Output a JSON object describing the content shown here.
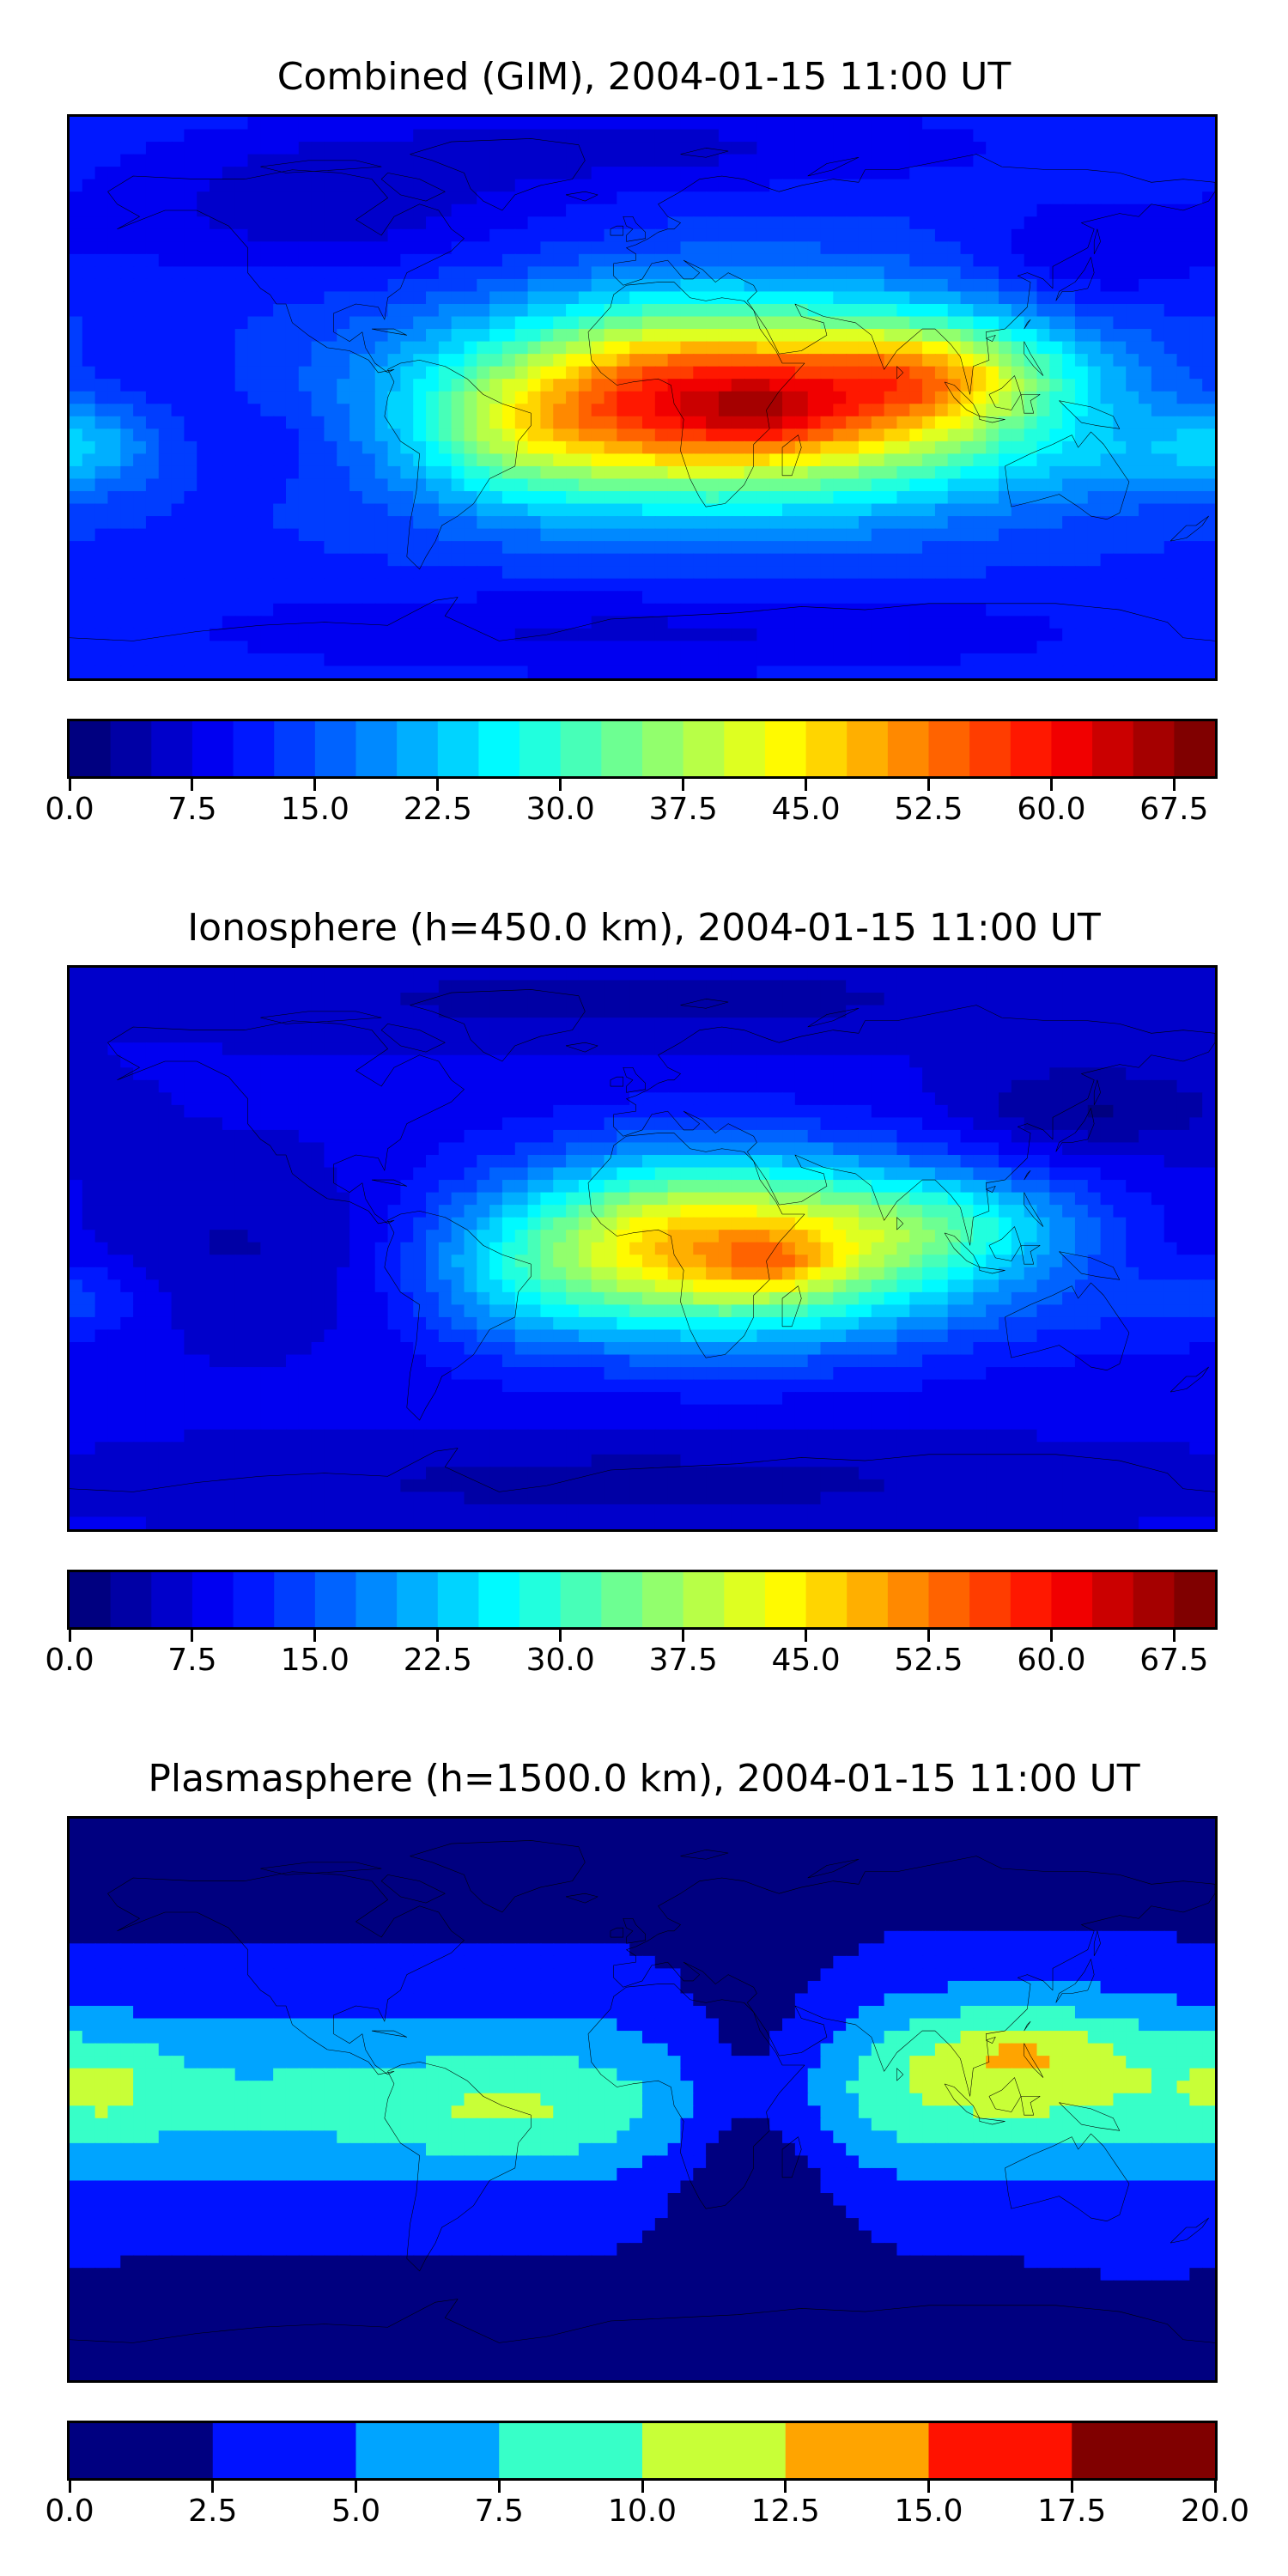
{
  "figure": {
    "panels": [
      {
        "id": "gim",
        "title": "Combined (GIM), 2004-01-15 11:00 UT"
      },
      {
        "id": "iono",
        "title": "Ionosphere  (h=450.0 km), 2004-01-15 11:00 UT"
      },
      {
        "id": "plasma",
        "title": "Plasmasphere (h=1500.0 km), 2004-01-15 11:00 UT"
      }
    ]
  },
  "chart_data": [
    {
      "type": "heatmap",
      "title": "Combined (GIM), 2004-01-15 11:00 UT",
      "projection": "plate-carree",
      "x_range": [
        -180,
        180
      ],
      "y_range": [
        -90,
        90
      ],
      "colormap": "jet",
      "colorbar": {
        "range": [
          0,
          70
        ],
        "levels": [
          0,
          2.5,
          5,
          7.5,
          10,
          12.5,
          15,
          17.5,
          20,
          22.5,
          25,
          27.5,
          30,
          32.5,
          35,
          37.5,
          40,
          42.5,
          45,
          47.5,
          50,
          52.5,
          55,
          57.5,
          60,
          62.5,
          65,
          67.5,
          70
        ],
        "ticks": [
          "0.0",
          "7.5",
          "15.0",
          "22.5",
          "30.0",
          "37.5",
          "45.0",
          "52.5",
          "60.0",
          "67.5"
        ],
        "tick_values": [
          0,
          7.5,
          15,
          22.5,
          30,
          37.5,
          45,
          52.5,
          60,
          67.5
        ]
      },
      "background_value": 12,
      "features": [
        {
          "lon": 30,
          "lat": -2,
          "value": 43,
          "sx": 62,
          "sy": 22
        },
        {
          "lon": 5,
          "lat": 2,
          "value": 8,
          "sx": 26,
          "sy": 18
        },
        {
          "lon": 85,
          "lat": 5,
          "value": 10,
          "sx": 26,
          "sy": 14
        },
        {
          "lon": 38,
          "lat": -5,
          "value": 7,
          "sx": 14,
          "sy": 7
        },
        {
          "lon": 100,
          "lat": 8,
          "value": 8,
          "sx": 30,
          "sy": 10
        },
        {
          "lon": -40,
          "lat": -12,
          "value": 9,
          "sx": 22,
          "sy": 16
        },
        {
          "lon": -175,
          "lat": -15,
          "value": 8,
          "sx": 18,
          "sy": 10
        },
        {
          "lon": 150,
          "lat": -20,
          "value": 4,
          "sx": 30,
          "sy": 10
        },
        {
          "lon": -120,
          "lat": -15,
          "value": -3,
          "sx": 22,
          "sy": 10
        },
        {
          "lon": -160,
          "lat": 5,
          "value": -2,
          "sx": 25,
          "sy": 10
        },
        {
          "lon": -100,
          "lat": 60,
          "value": -6,
          "sx": 50,
          "sy": 15
        },
        {
          "lon": 0,
          "lat": 80,
          "value": -5,
          "sx": 80,
          "sy": 10
        },
        {
          "lon": 140,
          "lat": 45,
          "value": -5,
          "sx": 25,
          "sy": 12
        },
        {
          "lon": 0,
          "lat": -75,
          "value": -5,
          "sx": 100,
          "sy": 10
        }
      ]
    },
    {
      "type": "heatmap",
      "title": "Ionosphere  (h=450.0 km), 2004-01-15 11:00 UT",
      "projection": "plate-carree",
      "x_range": [
        -180,
        180
      ],
      "y_range": [
        -90,
        90
      ],
      "colormap": "jet",
      "colorbar": {
        "range": [
          0,
          70
        ],
        "levels": [
          0,
          2.5,
          5,
          7.5,
          10,
          12.5,
          15,
          17.5,
          20,
          22.5,
          25,
          27.5,
          30,
          32.5,
          35,
          37.5,
          40,
          42.5,
          45,
          47.5,
          50,
          52.5,
          55,
          57.5,
          60,
          62.5,
          65,
          67.5,
          70
        ],
        "ticks": [
          "0.0",
          "7.5",
          "15.0",
          "22.5",
          "30.0",
          "37.5",
          "45.0",
          "52.5",
          "60.0",
          "67.5"
        ],
        "tick_values": [
          0,
          7.5,
          15,
          22.5,
          30,
          37.5,
          45,
          52.5,
          60,
          67.5
        ]
      },
      "background_value": 8,
      "features": [
        {
          "lon": 30,
          "lat": 0,
          "value": 38,
          "sx": 55,
          "sy": 20
        },
        {
          "lon": 40,
          "lat": -5,
          "value": 8,
          "sx": 12,
          "sy": 6
        },
        {
          "lon": 5,
          "lat": 5,
          "value": 5,
          "sx": 25,
          "sy": 18
        },
        {
          "lon": 100,
          "lat": 8,
          "value": 8,
          "sx": 30,
          "sy": 10
        },
        {
          "lon": -40,
          "lat": -12,
          "value": 6,
          "sx": 22,
          "sy": 16
        },
        {
          "lon": -175,
          "lat": -15,
          "value": 4,
          "sx": 15,
          "sy": 8
        },
        {
          "lon": 160,
          "lat": -20,
          "value": 3,
          "sx": 30,
          "sy": 12
        },
        {
          "lon": -110,
          "lat": 0,
          "value": -4,
          "sx": 50,
          "sy": 20
        },
        {
          "lon": 140,
          "lat": 45,
          "value": -6,
          "sx": 30,
          "sy": 10
        },
        {
          "lon": 0,
          "lat": 80,
          "value": -4,
          "sx": 100,
          "sy": 10
        },
        {
          "lon": 0,
          "lat": -75,
          "value": -4,
          "sx": 100,
          "sy": 10
        }
      ]
    },
    {
      "type": "heatmap",
      "title": "Plasmasphere (h=1500.0 km), 2004-01-15 11:00 UT",
      "projection": "plate-carree",
      "x_range": [
        -180,
        180
      ],
      "y_range": [
        -90,
        90
      ],
      "colormap": "jet",
      "colorbar": {
        "range": [
          0,
          20
        ],
        "levels": [
          0,
          2.5,
          5,
          7.5,
          10,
          12.5,
          15,
          17.5,
          20
        ],
        "ticks": [
          "0.0",
          "2.5",
          "5.0",
          "7.5",
          "10.0",
          "12.5",
          "15.0",
          "17.5",
          "20.0"
        ],
        "tick_values": [
          0,
          2.5,
          5,
          7.5,
          10,
          12.5,
          15,
          17.5,
          20
        ]
      },
      "background_value": 2,
      "features": [
        {
          "lon": 0,
          "lat": 0,
          "value": 5,
          "sx": 300,
          "sy": 24
        },
        {
          "lon": 0,
          "lat": -2,
          "value": 1.5,
          "sx": 300,
          "sy": 14
        },
        {
          "lon": 120,
          "lat": 15,
          "value": 5,
          "sx": 35,
          "sy": 15
        },
        {
          "lon": 118,
          "lat": 17,
          "value": 1.5,
          "sx": 12,
          "sy": 6
        },
        {
          "lon": -170,
          "lat": 5,
          "value": 3,
          "sx": 16,
          "sy": 12
        },
        {
          "lon": -45,
          "lat": -5,
          "value": 2,
          "sx": 25,
          "sy": 10
        },
        {
          "lon": 35,
          "lat": -5,
          "value": -6,
          "sx": 20,
          "sy": 28
        },
        {
          "lon": 160,
          "lat": -40,
          "value": 1,
          "sx": 20,
          "sy": 10
        }
      ]
    }
  ]
}
